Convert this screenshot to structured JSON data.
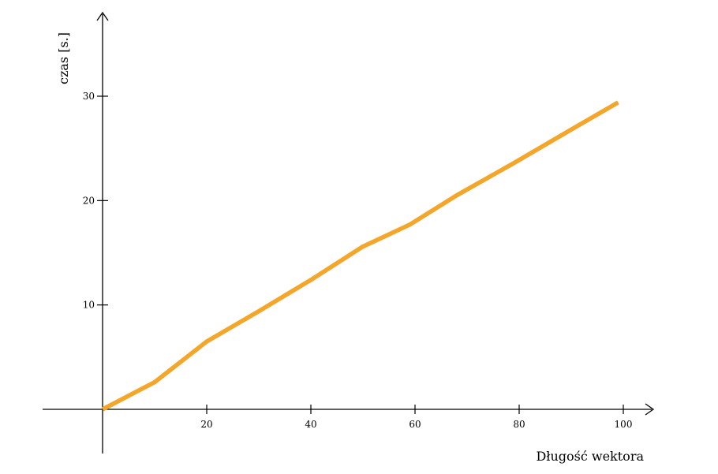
{
  "chart_data": {
    "type": "line",
    "title": "",
    "xlabel": "Długość wektora",
    "ylabel": "czas [s.]",
    "xlim": [
      0,
      100
    ],
    "ylim": [
      0,
      30
    ],
    "x_ticks": [
      20,
      40,
      60,
      80,
      100
    ],
    "y_ticks": [
      10,
      20,
      30
    ],
    "grid": false,
    "series": [
      {
        "color": "#F3A62A",
        "x": [
          0,
          10,
          20,
          30,
          40,
          50,
          59,
          68,
          79,
          90,
          99
        ],
        "y": [
          0,
          2.6,
          6.5,
          9.4,
          12.4,
          15.6,
          17.7,
          20.5,
          23.6,
          26.8,
          29.4
        ]
      }
    ]
  }
}
